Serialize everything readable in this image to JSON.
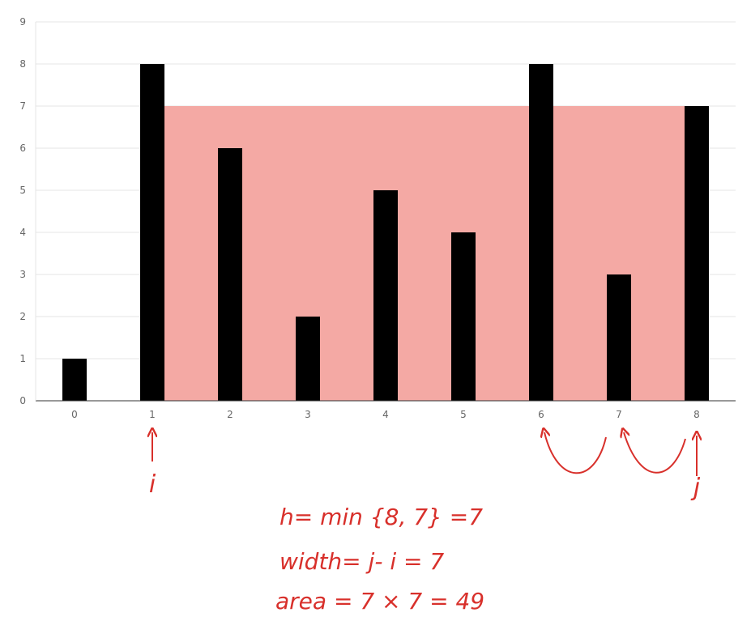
{
  "chart_data": {
    "type": "bar",
    "categories": [
      "0",
      "1",
      "2",
      "3",
      "4",
      "5",
      "6",
      "7",
      "8"
    ],
    "values": [
      1,
      8,
      6,
      2,
      5,
      4,
      8,
      3,
      7
    ],
    "ylim": [
      0,
      9
    ],
    "yticks": [
      "0",
      "1",
      "2",
      "3",
      "4",
      "5",
      "6",
      "7",
      "8",
      "9"
    ],
    "grid": true,
    "bar_color": "#000000",
    "highlight": {
      "from_index": 1,
      "to_index": 8,
      "height": 7,
      "color": "#f4a9a4"
    }
  },
  "annotations": {
    "accent_color": "#d8302b",
    "pointer_i": {
      "index": 1,
      "label": "i"
    },
    "pointer_j": {
      "index": 8,
      "label": "j"
    },
    "lines": [
      "h= min {8, 7} =7",
      "width= j- i = 7",
      "area = 7 × 7 = 49"
    ]
  }
}
